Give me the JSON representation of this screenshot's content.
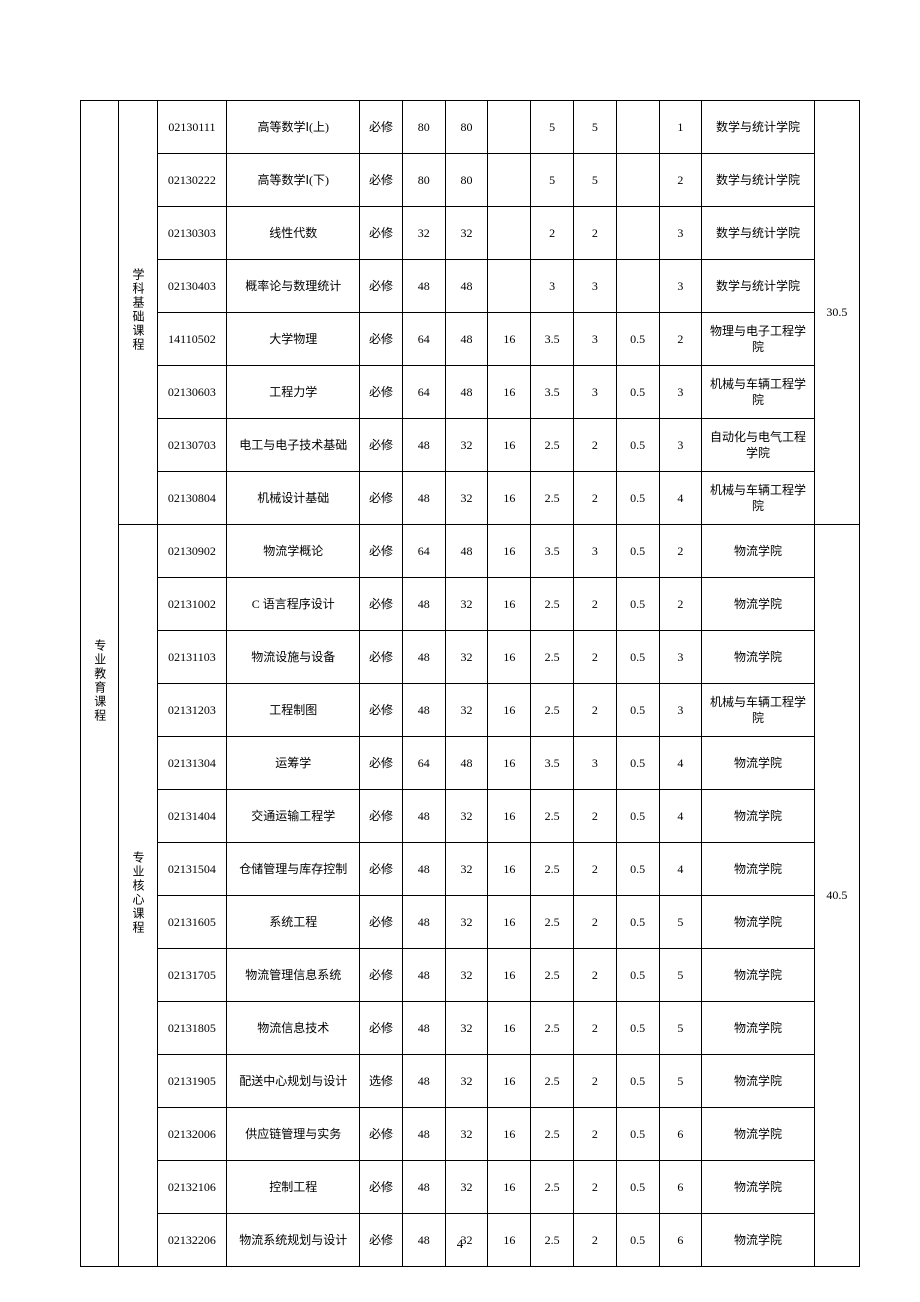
{
  "page_number": "4",
  "category_main": "专业教育课程",
  "sections": [
    {
      "sub_label": "学科基础课程",
      "total_credits": "30.5",
      "rows": [
        {
          "code": "02130111",
          "name": "高等数学Ⅰ(上)",
          "req": "必修",
          "h1": "80",
          "h2": "80",
          "h3": "",
          "cr1": "5",
          "cr2": "5",
          "cr3": "",
          "sem": "1",
          "dept": "数学与统计学院"
        },
        {
          "code": "02130222",
          "name": "高等数学Ⅰ(下)",
          "req": "必修",
          "h1": "80",
          "h2": "80",
          "h3": "",
          "cr1": "5",
          "cr2": "5",
          "cr3": "",
          "sem": "2",
          "dept": "数学与统计学院"
        },
        {
          "code": "02130303",
          "name": "线性代数",
          "req": "必修",
          "h1": "32",
          "h2": "32",
          "h3": "",
          "cr1": "2",
          "cr2": "2",
          "cr3": "",
          "sem": "3",
          "dept": "数学与统计学院"
        },
        {
          "code": "02130403",
          "name": "概率论与数理统计",
          "req": "必修",
          "h1": "48",
          "h2": "48",
          "h3": "",
          "cr1": "3",
          "cr2": "3",
          "cr3": "",
          "sem": "3",
          "dept": "数学与统计学院"
        },
        {
          "code": "14110502",
          "name": "大学物理",
          "req": "必修",
          "h1": "64",
          "h2": "48",
          "h3": "16",
          "cr1": "3.5",
          "cr2": "3",
          "cr3": "0.5",
          "sem": "2",
          "dept": "物理与电子工程学院"
        },
        {
          "code": "02130603",
          "name": "工程力学",
          "req": "必修",
          "h1": "64",
          "h2": "48",
          "h3": "16",
          "cr1": "3.5",
          "cr2": "3",
          "cr3": "0.5",
          "sem": "3",
          "dept": "机械与车辆工程学院"
        },
        {
          "code": "02130703",
          "name": "电工与电子技术基础",
          "req": "必修",
          "h1": "48",
          "h2": "32",
          "h3": "16",
          "cr1": "2.5",
          "cr2": "2",
          "cr3": "0.5",
          "sem": "3",
          "dept": "自动化与电气工程学院"
        },
        {
          "code": "02130804",
          "name": "机械设计基础",
          "req": "必修",
          "h1": "48",
          "h2": "32",
          "h3": "16",
          "cr1": "2.5",
          "cr2": "2",
          "cr3": "0.5",
          "sem": "4",
          "dept": "机械与车辆工程学院"
        }
      ]
    },
    {
      "sub_label": "专业核心课程",
      "total_credits": "40.5",
      "rows": [
        {
          "code": "02130902",
          "name": "物流学概论",
          "req": "必修",
          "h1": "64",
          "h2": "48",
          "h3": "16",
          "cr1": "3.5",
          "cr2": "3",
          "cr3": "0.5",
          "sem": "2",
          "dept": "物流学院"
        },
        {
          "code": "02131002",
          "name": "C 语言程序设计",
          "req": "必修",
          "h1": "48",
          "h2": "32",
          "h3": "16",
          "cr1": "2.5",
          "cr2": "2",
          "cr3": "0.5",
          "sem": "2",
          "dept": "物流学院"
        },
        {
          "code": "02131103",
          "name": "物流设施与设备",
          "req": "必修",
          "h1": "48",
          "h2": "32",
          "h3": "16",
          "cr1": "2.5",
          "cr2": "2",
          "cr3": "0.5",
          "sem": "3",
          "dept": "物流学院"
        },
        {
          "code": "02131203",
          "name": "工程制图",
          "req": "必修",
          "h1": "48",
          "h2": "32",
          "h3": "16",
          "cr1": "2.5",
          "cr2": "2",
          "cr3": "0.5",
          "sem": "3",
          "dept": "机械与车辆工程学院"
        },
        {
          "code": "02131304",
          "name": "运筹学",
          "req": "必修",
          "h1": "64",
          "h2": "48",
          "h3": "16",
          "cr1": "3.5",
          "cr2": "3",
          "cr3": "0.5",
          "sem": "4",
          "dept": "物流学院"
        },
        {
          "code": "02131404",
          "name": "交通运输工程学",
          "req": "必修",
          "h1": "48",
          "h2": "32",
          "h3": "16",
          "cr1": "2.5",
          "cr2": "2",
          "cr3": "0.5",
          "sem": "4",
          "dept": "物流学院"
        },
        {
          "code": "02131504",
          "name": "仓储管理与库存控制",
          "req": "必修",
          "h1": "48",
          "h2": "32",
          "h3": "16",
          "cr1": "2.5",
          "cr2": "2",
          "cr3": "0.5",
          "sem": "4",
          "dept": "物流学院"
        },
        {
          "code": "02131605",
          "name": "系统工程",
          "req": "必修",
          "h1": "48",
          "h2": "32",
          "h3": "16",
          "cr1": "2.5",
          "cr2": "2",
          "cr3": "0.5",
          "sem": "5",
          "dept": "物流学院"
        },
        {
          "code": "02131705",
          "name": "物流管理信息系统",
          "req": "必修",
          "h1": "48",
          "h2": "32",
          "h3": "16",
          "cr1": "2.5",
          "cr2": "2",
          "cr3": "0.5",
          "sem": "5",
          "dept": "物流学院"
        },
        {
          "code": "02131805",
          "name": "物流信息技术",
          "req": "必修",
          "h1": "48",
          "h2": "32",
          "h3": "16",
          "cr1": "2.5",
          "cr2": "2",
          "cr3": "0.5",
          "sem": "5",
          "dept": "物流学院"
        },
        {
          "code": "02131905",
          "name": "配送中心规划与设计",
          "req": "选修",
          "h1": "48",
          "h2": "32",
          "h3": "16",
          "cr1": "2.5",
          "cr2": "2",
          "cr3": "0.5",
          "sem": "5",
          "dept": "物流学院"
        },
        {
          "code": "02132006",
          "name": "供应链管理与实务",
          "req": "必修",
          "h1": "48",
          "h2": "32",
          "h3": "16",
          "cr1": "2.5",
          "cr2": "2",
          "cr3": "0.5",
          "sem": "6",
          "dept": "物流学院"
        },
        {
          "code": "02132106",
          "name": "控制工程",
          "req": "必修",
          "h1": "48",
          "h2": "32",
          "h3": "16",
          "cr1": "2.5",
          "cr2": "2",
          "cr3": "0.5",
          "sem": "6",
          "dept": "物流学院"
        },
        {
          "code": "02132206",
          "name": "物流系统规划与设计",
          "req": "必修",
          "h1": "48",
          "h2": "32",
          "h3": "16",
          "cr1": "2.5",
          "cr2": "2",
          "cr3": "0.5",
          "sem": "6",
          "dept": "物流学院"
        }
      ]
    }
  ]
}
